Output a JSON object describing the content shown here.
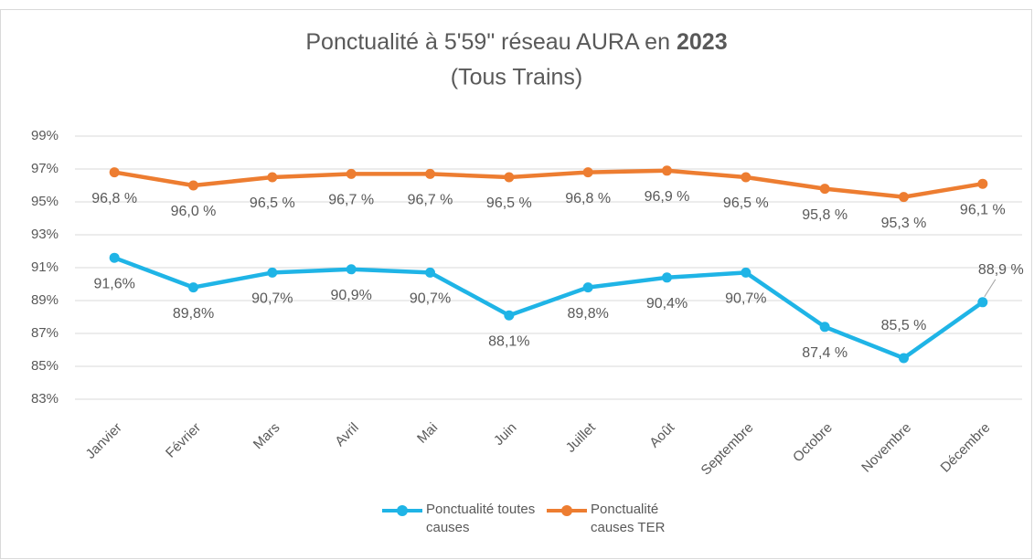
{
  "chart_data": {
    "type": "line",
    "title": [
      "Ponctualité à 5'59\" réseau AURA en",
      "2023"
    ],
    "subtitle": "(Tous Trains)",
    "categories": [
      "Janvier",
      "Février",
      "Mars",
      "Avril",
      "Mai",
      "Juin",
      "Juillet",
      "Août",
      "Septembre",
      "Octobre",
      "Novembre",
      "Décembre"
    ],
    "series": [
      {
        "name": "Ponctualité toutes causes",
        "color": "#1fb4e6",
        "values": [
          91.6,
          89.8,
          90.7,
          90.9,
          90.7,
          88.1,
          89.8,
          90.4,
          90.7,
          87.4,
          85.5,
          88.9
        ],
        "value_labels": [
          "91,6%",
          "89,8%",
          "90,7%",
          "90,9%",
          "90,7%",
          "88,1%",
          "89,8%",
          "90,4%",
          "90,7%",
          "87,4 %",
          "85,5 %",
          "88,9 %"
        ]
      },
      {
        "name": "Ponctualité causes TER",
        "color": "#ed7d31",
        "values": [
          96.8,
          96.0,
          96.5,
          96.7,
          96.7,
          96.5,
          96.8,
          96.9,
          96.5,
          95.8,
          95.3,
          96.1
        ],
        "value_labels": [
          "96,8 %",
          "96,0 %",
          "96,5 %",
          "96,7 %",
          "96,7 %",
          "96,5 %",
          "96,8 %",
          "96,9 %",
          "96,5 %",
          "95,8 %",
          "95,3 %",
          "96,1 %"
        ]
      }
    ],
    "ylim": [
      83,
      99
    ],
    "yticks": [
      {
        "value": 83,
        "label": "83%"
      },
      {
        "value": 85,
        "label": "85%"
      },
      {
        "value": 87,
        "label": "87%"
      },
      {
        "value": 89,
        "label": "89%"
      },
      {
        "value": 91,
        "label": "91%"
      },
      {
        "value": 93,
        "label": "93%"
      },
      {
        "value": 95,
        "label": "95%"
      },
      {
        "value": 97,
        "label": "97%"
      },
      {
        "value": 99,
        "label": "99%"
      }
    ],
    "grid": true,
    "legend": "bottom"
  }
}
